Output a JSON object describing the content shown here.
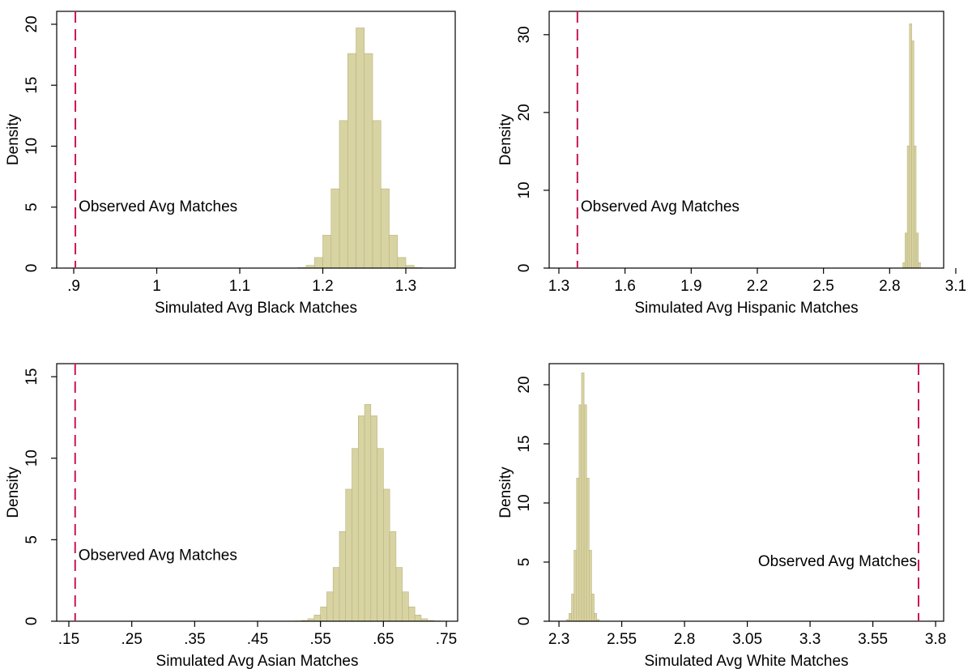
{
  "chart_data": [
    {
      "type": "histogram",
      "xlabel": "Simulated Avg Black Matches",
      "ylabel": "Density",
      "color": "#d8d3a2",
      "edge_color": "#b9b37c",
      "bins": [
        1.16,
        1.17,
        1.18,
        1.19,
        1.2,
        1.21,
        1.22,
        1.23,
        1.24,
        1.25,
        1.26,
        1.27,
        1.28,
        1.29,
        1.3,
        1.31,
        1.32,
        1.33,
        1.34
      ],
      "values": [
        0.01,
        0.04,
        0.22,
        0.87,
        2.7,
        6.5,
        12.1,
        17.6,
        19.7,
        17.6,
        12.1,
        6.5,
        2.7,
        0.87,
        0.22,
        0.04,
        0.01,
        0.01
      ],
      "xlim": [
        0.8795,
        1.3595
      ],
      "ylim": [
        0,
        21.06
      ],
      "xticks": [
        {
          "value": 0.9,
          "label": ".9"
        },
        1,
        1.1,
        1.2,
        1.3
      ],
      "yticks": [
        0,
        5,
        10,
        15,
        20
      ],
      "vline": 0.902,
      "vline_color": "#c8174e",
      "annotation": "Observed Avg Matches",
      "annotation_y": 5
    },
    {
      "type": "histogram",
      "xlabel": "Simulated Avg Hispanic Matches",
      "ylabel": "Density",
      "color": "#d8d3a2",
      "edge_color": "#b9b37c",
      "bins": [
        2.86,
        2.87,
        2.88,
        2.89,
        2.9,
        2.91,
        2.92,
        2.93,
        2.94
      ],
      "values": [
        0.7,
        4.5,
        15.7,
        31.4,
        29.2,
        15.7,
        4.5,
        0.7
      ],
      "xlim": [
        1.256,
        3.045
      ],
      "ylim": [
        0,
        33
      ],
      "xticks": [
        1.3,
        1.6,
        1.9,
        2.2,
        2.5,
        2.8,
        3.1
      ],
      "yticks": [
        0,
        10,
        20,
        30
      ],
      "vline": 1.384,
      "vline_color": "#c8174e",
      "annotation": "Observed Avg Matches",
      "annotation_y": 7.8
    },
    {
      "type": "histogram",
      "xlabel": "Simulated Avg Asian Matches",
      "ylabel": "Density",
      "color": "#d8d3a2",
      "edge_color": "#b9b37c",
      "bins": [
        0.51,
        0.52,
        0.53,
        0.54,
        0.55,
        0.56,
        0.57,
        0.58,
        0.59,
        0.6,
        0.61,
        0.62,
        0.63,
        0.64,
        0.65,
        0.66,
        0.67,
        0.68,
        0.69,
        0.7,
        0.71,
        0.72,
        0.73,
        0.74
      ],
      "values": [
        0.02,
        0.05,
        0.15,
        0.38,
        0.88,
        1.8,
        3.3,
        5.5,
        8.1,
        10.6,
        12.6,
        13.3,
        12.6,
        10.6,
        8.1,
        5.5,
        3.3,
        1.8,
        0.88,
        0.38,
        0.15,
        0.05,
        0.02
      ],
      "xlim": [
        0.1307,
        0.768
      ],
      "ylim": [
        0,
        15.8
      ],
      "xticks": [
        {
          "value": 0.15,
          "label": ".15"
        },
        {
          "value": 0.25,
          "label": ".25"
        },
        {
          "value": 0.35,
          "label": ".35"
        },
        {
          "value": 0.45,
          "label": ".45"
        },
        {
          "value": 0.55,
          "label": ".55"
        },
        {
          "value": 0.65,
          "label": ".65"
        },
        {
          "value": 0.75,
          "label": ".75"
        }
      ],
      "yticks": [
        0,
        5,
        10,
        15
      ],
      "vline": 0.16,
      "vline_color": "#c8174e",
      "annotation": "Observed Avg Matches",
      "annotation_y": 4
    },
    {
      "type": "histogram",
      "xlabel": "Simulated Avg White Matches",
      "ylabel": "Density",
      "color": "#d8d3a2",
      "edge_color": "#b9b37c",
      "bins": [
        2.33,
        2.34,
        2.35,
        2.36,
        2.37,
        2.38,
        2.39,
        2.4,
        2.41,
        2.42,
        2.43,
        2.44,
        2.45,
        2.46
      ],
      "values": [
        0.14,
        0.66,
        2.3,
        6.0,
        12.1,
        18.3,
        21,
        18.3,
        12.1,
        6.0,
        2.3,
        0.66,
        0.14
      ],
      "xlim": [
        2.261,
        3.832
      ],
      "ylim": [
        0,
        21.78
      ],
      "xticks": [
        2.3,
        2.55,
        2.8,
        3.05,
        3.3,
        3.55,
        3.8
      ],
      "yticks": [
        0,
        5,
        10,
        15,
        20
      ],
      "vline": 3.732,
      "vline_color": "#c8174e",
      "annotation": "Observed Avg Matches",
      "annotation_y": 5
    }
  ]
}
